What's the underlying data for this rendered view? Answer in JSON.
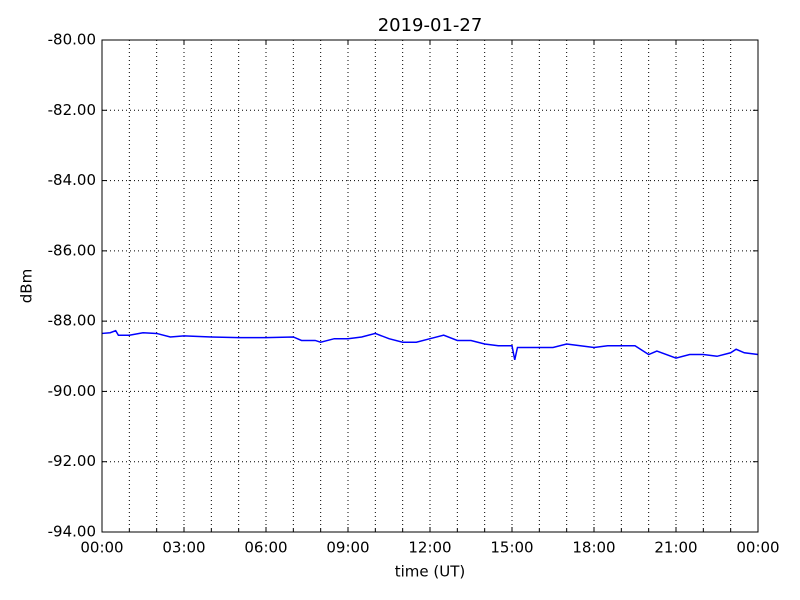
{
  "chart_data": {
    "type": "line",
    "title": "2019-01-27",
    "xlabel": "time (UT)",
    "ylabel": "dBm",
    "x": [
      0,
      0.3,
      0.5,
      0.6,
      1,
      1.5,
      2,
      2.5,
      3,
      4,
      5,
      6,
      7,
      7.3,
      7.8,
      8,
      8.5,
      9,
      9.5,
      10,
      10.5,
      11,
      11.5,
      12,
      12.5,
      13,
      13.5,
      14,
      14.5,
      15,
      15.1,
      15.2,
      16,
      16.5,
      17,
      17.5,
      18,
      18.5,
      19,
      19.5,
      20,
      20.3,
      21,
      21.5,
      22,
      22.5,
      23,
      23.2,
      23.5,
      24
    ],
    "series": [
      {
        "name": "dBm",
        "color": "#0000ff",
        "values": [
          -88.35,
          -88.33,
          -88.27,
          -88.4,
          -88.4,
          -88.33,
          -88.35,
          -88.45,
          -88.42,
          -88.45,
          -88.47,
          -88.47,
          -88.45,
          -88.55,
          -88.55,
          -88.6,
          -88.5,
          -88.5,
          -88.45,
          -88.35,
          -88.5,
          -88.6,
          -88.6,
          -88.5,
          -88.4,
          -88.55,
          -88.55,
          -88.65,
          -88.7,
          -88.7,
          -89.1,
          -88.75,
          -88.75,
          -88.75,
          -88.65,
          -88.7,
          -88.75,
          -88.7,
          -88.7,
          -88.7,
          -88.95,
          -88.85,
          -89.05,
          -88.95,
          -88.95,
          -89.0,
          -88.9,
          -88.8,
          -88.9,
          -88.95
        ]
      }
    ],
    "xlim": [
      0,
      24
    ],
    "xticks": [
      {
        "value": 0,
        "label": "00:00"
      },
      {
        "value": 3,
        "label": "03:00"
      },
      {
        "value": 6,
        "label": "06:00"
      },
      {
        "value": 9,
        "label": "09:00"
      },
      {
        "value": 12,
        "label": "12:00"
      },
      {
        "value": 15,
        "label": "15:00"
      },
      {
        "value": 18,
        "label": "18:00"
      },
      {
        "value": 21,
        "label": "21:00"
      },
      {
        "value": 24,
        "label": "00:00"
      }
    ],
    "xminorticks": [
      1,
      2,
      4,
      5,
      7,
      8,
      10,
      11,
      13,
      14,
      16,
      17,
      19,
      20,
      22,
      23
    ],
    "ylim": [
      -94,
      -80
    ],
    "yticks": [
      {
        "value": -94,
        "label": "-94.00"
      },
      {
        "value": -92,
        "label": "-92.00"
      },
      {
        "value": -90,
        "label": "-90.00"
      },
      {
        "value": -88,
        "label": "-88.00"
      },
      {
        "value": -86,
        "label": "-86.00"
      },
      {
        "value": -84,
        "label": "-84.00"
      },
      {
        "value": -82,
        "label": "-82.00"
      },
      {
        "value": -80,
        "label": "-80.00"
      }
    ],
    "grid": true
  }
}
